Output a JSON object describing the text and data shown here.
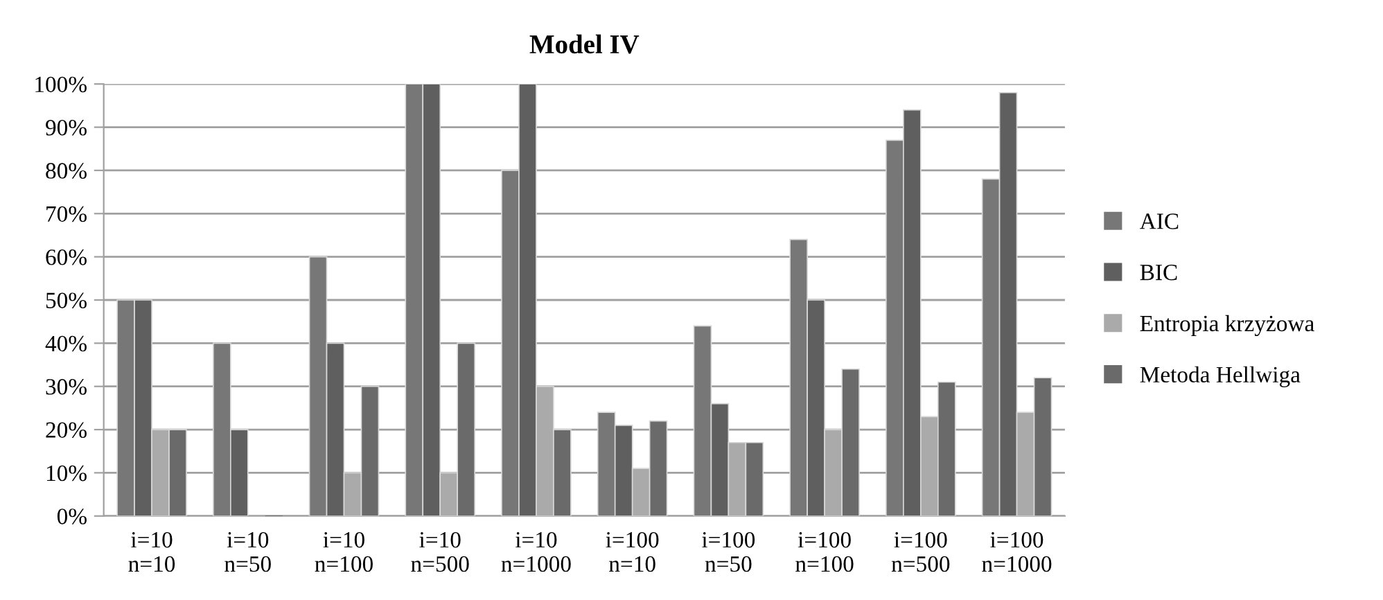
{
  "chart_data": {
    "type": "bar",
    "title": "Model IV",
    "categories": [
      "i=10\nn=10",
      "i=10\nn=50",
      "i=10\nn=100",
      "i=10\nn=500",
      "i=10\nn=1000",
      "i=100\nn=10",
      "i=100\nn=50",
      "i=100\nn=100",
      "i=100\nn=500",
      "i=100\nn=1000"
    ],
    "series": [
      {
        "name": "AIC",
        "color": "#777777",
        "values": [
          50,
          40,
          60,
          100,
          80,
          24,
          44,
          64,
          87,
          78
        ]
      },
      {
        "name": "BIC",
        "color": "#5f5f5f",
        "values": [
          50,
          20,
          40,
          100,
          100,
          21,
          26,
          50,
          94,
          98
        ]
      },
      {
        "name": "Entropia krzyżowa",
        "color": "#aaaaaa",
        "values": [
          20,
          0,
          10,
          10,
          30,
          11,
          17,
          20,
          23,
          24
        ]
      },
      {
        "name": "Metoda Hellwiga",
        "color": "#6a6a6a",
        "values": [
          20,
          0,
          30,
          40,
          20,
          22,
          17,
          34,
          31,
          32
        ]
      }
    ],
    "ylim": [
      0,
      100
    ],
    "yticks": [
      {
        "value": 0,
        "label": "0%"
      },
      {
        "value": 10,
        "label": "10%"
      },
      {
        "value": 20,
        "label": "20%"
      },
      {
        "value": 30,
        "label": "30%"
      },
      {
        "value": 40,
        "label": "40%"
      },
      {
        "value": 50,
        "label": "50%"
      },
      {
        "value": 60,
        "label": "60%"
      },
      {
        "value": 70,
        "label": "70%"
      },
      {
        "value": 80,
        "label": "80%"
      },
      {
        "value": 90,
        "label": "90%"
      },
      {
        "value": 100,
        "label": "100%"
      }
    ],
    "grid": "y",
    "legend": "right"
  }
}
